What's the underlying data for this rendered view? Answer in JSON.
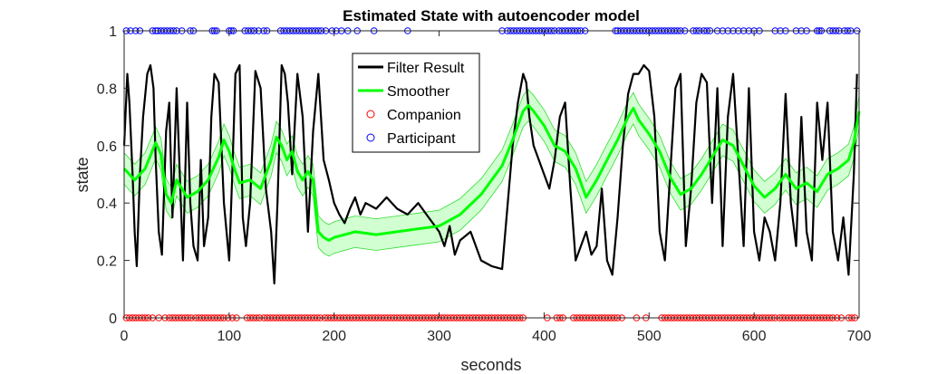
{
  "chart_data": {
    "type": "line",
    "title": "Estimated State with autoencoder model",
    "xlabel": "seconds",
    "ylabel": "state",
    "xlim": [
      0,
      700
    ],
    "ylim": [
      0,
      1
    ],
    "xticks": [
      "0",
      "100",
      "200",
      "300",
      "400",
      "500",
      "600",
      "700"
    ],
    "yticks": [
      "0",
      "0.2",
      "0.4",
      "0.6",
      "0.8",
      "1"
    ],
    "grid": false,
    "legend_position": "top-center",
    "colors": {
      "filter": "#000000",
      "smoother": "#00ff00",
      "band": "#ccffcc",
      "companion": "#ff0000",
      "participant": "#0000ff"
    },
    "series": [
      {
        "name": "Filter Result",
        "style": "line",
        "x": [
          0,
          3,
          5,
          8,
          10,
          12,
          15,
          18,
          22,
          25,
          28,
          30,
          33,
          36,
          40,
          43,
          46,
          50,
          53,
          56,
          60,
          63,
          66,
          70,
          73,
          76,
          80,
          83,
          86,
          90,
          95,
          100,
          103,
          106,
          110,
          113,
          116,
          120,
          125,
          130,
          135,
          140,
          143,
          146,
          150,
          153,
          156,
          160,
          165,
          170,
          175,
          180,
          185,
          190,
          195,
          200,
          205,
          210,
          215,
          220,
          225,
          230,
          240,
          250,
          260,
          270,
          280,
          290,
          300,
          305,
          310,
          315,
          320,
          330,
          340,
          350,
          360,
          370,
          375,
          380,
          383,
          386,
          390,
          395,
          400,
          405,
          410,
          415,
          420,
          425,
          430,
          435,
          440,
          445,
          450,
          455,
          460,
          465,
          470,
          475,
          480,
          485,
          490,
          495,
          500,
          505,
          510,
          515,
          520,
          525,
          530,
          535,
          540,
          545,
          550,
          555,
          560,
          565,
          570,
          575,
          580,
          585,
          590,
          595,
          600,
          605,
          610,
          615,
          620,
          625,
          630,
          635,
          640,
          645,
          650,
          655,
          660,
          665,
          670,
          675,
          680,
          685,
          690,
          695,
          698
        ],
        "y": [
          0.6,
          0.85,
          0.75,
          0.5,
          0.3,
          0.18,
          0.5,
          0.7,
          0.85,
          0.88,
          0.8,
          0.55,
          0.3,
          0.22,
          0.65,
          0.75,
          0.35,
          0.8,
          0.5,
          0.2,
          0.75,
          0.4,
          0.25,
          0.2,
          0.55,
          0.25,
          0.35,
          0.7,
          0.85,
          0.82,
          0.4,
          0.2,
          0.5,
          0.85,
          0.88,
          0.35,
          0.25,
          0.4,
          0.86,
          0.8,
          0.45,
          0.3,
          0.12,
          0.4,
          0.88,
          0.85,
          0.75,
          0.5,
          0.85,
          0.7,
          0.3,
          0.65,
          0.85,
          0.55,
          0.48,
          0.4,
          0.36,
          0.33,
          0.38,
          0.42,
          0.36,
          0.4,
          0.38,
          0.42,
          0.38,
          0.36,
          0.4,
          0.35,
          0.3,
          0.25,
          0.32,
          0.22,
          0.27,
          0.3,
          0.2,
          0.18,
          0.17,
          0.6,
          0.75,
          0.85,
          0.82,
          0.7,
          0.6,
          0.55,
          0.5,
          0.45,
          0.55,
          0.7,
          0.75,
          0.45,
          0.2,
          0.25,
          0.3,
          0.22,
          0.25,
          0.45,
          0.2,
          0.15,
          0.35,
          0.6,
          0.78,
          0.85,
          0.85,
          0.88,
          0.86,
          0.7,
          0.3,
          0.2,
          0.5,
          0.8,
          0.85,
          0.25,
          0.45,
          0.75,
          0.85,
          0.82,
          0.4,
          0.8,
          0.25,
          0.7,
          0.85,
          0.55,
          0.25,
          0.8,
          0.3,
          0.2,
          0.35,
          0.3,
          0.2,
          0.4,
          0.78,
          0.4,
          0.25,
          0.7,
          0.3,
          0.2,
          0.75,
          0.55,
          0.75,
          0.3,
          0.2,
          0.35,
          0.15,
          0.5,
          0.85
        ]
      },
      {
        "name": "Smoother",
        "style": "line",
        "x": [
          0,
          10,
          20,
          30,
          35,
          40,
          45,
          50,
          60,
          70,
          80,
          90,
          95,
          100,
          105,
          110,
          120,
          130,
          140,
          145,
          150,
          155,
          160,
          165,
          170,
          175,
          180,
          185,
          190,
          195,
          200,
          210,
          220,
          240,
          260,
          280,
          300,
          320,
          340,
          360,
          370,
          380,
          385,
          390,
          400,
          410,
          420,
          430,
          440,
          450,
          460,
          470,
          480,
          485,
          490,
          500,
          510,
          520,
          530,
          540,
          550,
          560,
          570,
          580,
          590,
          600,
          610,
          620,
          630,
          640,
          650,
          660,
          670,
          680,
          690,
          695,
          700
        ],
        "y": [
          0.52,
          0.48,
          0.52,
          0.61,
          0.57,
          0.43,
          0.4,
          0.48,
          0.42,
          0.44,
          0.48,
          0.56,
          0.62,
          0.58,
          0.52,
          0.47,
          0.48,
          0.45,
          0.55,
          0.63,
          0.6,
          0.55,
          0.58,
          0.51,
          0.48,
          0.51,
          0.48,
          0.3,
          0.28,
          0.27,
          0.28,
          0.29,
          0.3,
          0.29,
          0.3,
          0.31,
          0.32,
          0.36,
          0.43,
          0.53,
          0.62,
          0.72,
          0.74,
          0.72,
          0.67,
          0.6,
          0.58,
          0.52,
          0.42,
          0.48,
          0.55,
          0.62,
          0.7,
          0.73,
          0.69,
          0.64,
          0.58,
          0.49,
          0.43,
          0.45,
          0.5,
          0.56,
          0.62,
          0.6,
          0.53,
          0.46,
          0.42,
          0.45,
          0.5,
          0.45,
          0.47,
          0.44,
          0.5,
          0.52,
          0.55,
          0.61,
          0.72
        ]
      },
      {
        "name": "Companion",
        "style": "markers",
        "y_level": 0,
        "x": [
          2,
          5,
          8,
          11,
          14,
          17,
          20,
          23,
          27,
          33,
          39,
          43,
          46,
          49,
          52,
          55,
          58,
          61,
          64,
          68,
          71,
          74,
          77,
          80,
          83,
          86,
          89,
          92,
          95,
          99,
          103,
          107,
          117,
          120,
          123,
          126,
          129,
          133,
          136,
          139,
          142,
          145,
          148,
          151,
          154,
          157,
          160,
          163,
          166,
          169,
          172,
          175,
          178,
          181,
          184,
          187,
          191,
          194,
          197,
          200,
          203,
          206,
          209,
          212,
          215,
          218,
          221,
          224,
          227,
          230,
          233,
          236,
          239,
          242,
          245,
          248,
          251,
          254,
          257,
          260,
          263,
          266,
          269,
          272,
          275,
          278,
          281,
          284,
          287,
          290,
          293,
          296,
          299,
          302,
          305,
          308,
          311,
          314,
          317,
          320,
          323,
          326,
          329,
          332,
          335,
          338,
          341,
          344,
          347,
          350,
          353,
          356,
          359,
          362,
          365,
          368,
          371,
          374,
          377,
          380,
          403,
          412,
          415,
          418,
          428,
          431,
          434,
          437,
          440,
          443,
          446,
          449,
          452,
          455,
          458,
          461,
          464,
          467,
          470,
          474,
          488,
          497,
          512,
          515,
          518,
          521,
          524,
          527,
          530,
          533,
          536,
          539,
          542,
          545,
          548,
          551,
          554,
          557,
          560,
          563,
          566,
          569,
          572,
          575,
          578,
          581,
          584,
          587,
          590,
          593,
          596,
          599,
          602,
          605,
          608,
          611,
          614,
          617,
          620,
          624,
          627,
          630,
          633,
          636,
          639,
          642,
          645,
          648,
          651,
          654,
          657,
          660,
          663,
          666,
          669,
          672,
          675,
          679,
          683,
          690,
          693,
          696
        ]
      },
      {
        "name": "Participant",
        "style": "markers",
        "y_level": 1,
        "x": [
          2,
          6,
          11,
          15,
          27,
          30,
          32,
          35,
          38,
          41,
          44,
          47,
          50,
          55,
          63,
          66,
          84,
          86,
          88,
          100,
          102,
          104,
          115,
          118,
          121,
          124,
          128,
          133,
          136,
          149,
          152,
          155,
          158,
          161,
          164,
          167,
          170,
          173,
          176,
          179,
          182,
          185,
          188,
          192,
          198,
          202,
          207,
          213,
          222,
          238,
          270,
          360,
          365,
          368,
          371,
          374,
          377,
          380,
          383,
          386,
          389,
          392,
          395,
          398,
          401,
          404,
          407,
          410,
          414,
          417,
          420,
          423,
          426,
          429,
          432,
          435,
          439,
          468,
          470,
          473,
          476,
          479,
          482,
          485,
          488,
          491,
          494,
          497,
          500,
          503,
          506,
          509,
          512,
          515,
          518,
          521,
          524,
          527,
          530,
          534,
          542,
          545,
          548,
          552,
          555,
          558,
          565,
          570,
          575,
          580,
          585,
          590,
          595,
          600,
          605,
          620,
          625,
          630,
          640,
          645,
          650,
          660,
          662,
          664,
          672,
          675,
          678,
          681,
          686,
          689,
          692,
          698
        ]
      }
    ]
  }
}
